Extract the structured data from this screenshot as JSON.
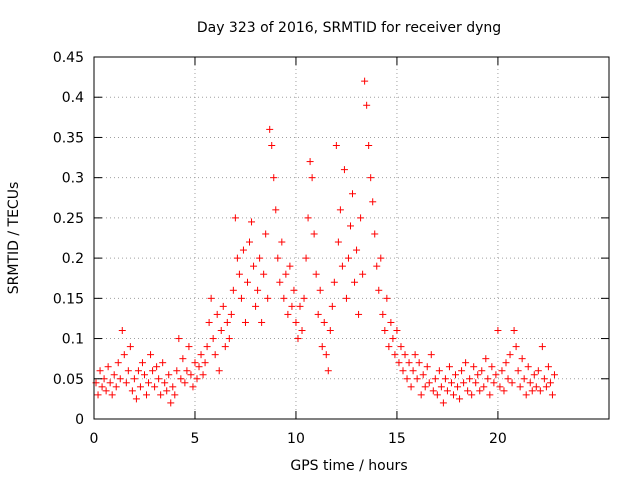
{
  "chart_data": {
    "type": "scatter",
    "title": "Day 323 of 2016, SRMTID for receiver dyng",
    "xlabel": "GPS time / hours",
    "ylabel": "SRMTID / TECUs",
    "xlim": [
      0,
      25.5
    ],
    "ylim": [
      0,
      0.45
    ],
    "xticks": [
      0,
      5,
      10,
      15,
      20
    ],
    "xtick_labels": [
      "0",
      "5",
      "10",
      "15",
      "20"
    ],
    "yticks": [
      0,
      0.05,
      0.1,
      0.15,
      0.2,
      0.25,
      0.3,
      0.35,
      0.4,
      0.45
    ],
    "ytick_labels": [
      "0",
      "0.05",
      "0.1",
      "0.15",
      "0.2",
      "0.25",
      "0.3",
      "0.35",
      "0.4",
      "0.45"
    ],
    "grid": true,
    "marker": "+",
    "color": "#ff0000",
    "series": [
      {
        "name": "SRMTID",
        "points": [
          [
            0.1,
            0.045
          ],
          [
            0.2,
            0.03
          ],
          [
            0.3,
            0.06
          ],
          [
            0.4,
            0.04
          ],
          [
            0.5,
            0.05
          ],
          [
            0.6,
            0.035
          ],
          [
            0.7,
            0.065
          ],
          [
            0.8,
            0.045
          ],
          [
            0.9,
            0.03
          ],
          [
            1.0,
            0.055
          ],
          [
            1.1,
            0.04
          ],
          [
            1.2,
            0.07
          ],
          [
            1.3,
            0.05
          ],
          [
            1.4,
            0.11
          ],
          [
            1.5,
            0.08
          ],
          [
            1.6,
            0.045
          ],
          [
            1.7,
            0.06
          ],
          [
            1.8,
            0.09
          ],
          [
            1.9,
            0.035
          ],
          [
            2.0,
            0.05
          ],
          [
            2.1,
            0.025
          ],
          [
            2.2,
            0.06
          ],
          [
            2.3,
            0.04
          ],
          [
            2.4,
            0.07
          ],
          [
            2.5,
            0.055
          ],
          [
            2.6,
            0.03
          ],
          [
            2.7,
            0.045
          ],
          [
            2.8,
            0.08
          ],
          [
            2.9,
            0.06
          ],
          [
            3.0,
            0.04
          ],
          [
            3.1,
            0.065
          ],
          [
            3.2,
            0.05
          ],
          [
            3.3,
            0.03
          ],
          [
            3.4,
            0.07
          ],
          [
            3.5,
            0.045
          ],
          [
            3.6,
            0.035
          ],
          [
            3.7,
            0.055
          ],
          [
            3.8,
            0.02
          ],
          [
            3.9,
            0.04
          ],
          [
            4.0,
            0.03
          ],
          [
            4.1,
            0.06
          ],
          [
            4.2,
            0.1
          ],
          [
            4.3,
            0.05
          ],
          [
            4.4,
            0.075
          ],
          [
            4.5,
            0.045
          ],
          [
            4.6,
            0.06
          ],
          [
            4.7,
            0.09
          ],
          [
            4.8,
            0.055
          ],
          [
            4.9,
            0.04
          ],
          [
            5.0,
            0.07
          ],
          [
            5.1,
            0.05
          ],
          [
            5.2,
            0.065
          ],
          [
            5.3,
            0.08
          ],
          [
            5.4,
            0.055
          ],
          [
            5.5,
            0.07
          ],
          [
            5.6,
            0.09
          ],
          [
            5.7,
            0.12
          ],
          [
            5.8,
            0.15
          ],
          [
            5.9,
            0.1
          ],
          [
            6.0,
            0.08
          ],
          [
            6.1,
            0.13
          ],
          [
            6.2,
            0.06
          ],
          [
            6.3,
            0.11
          ],
          [
            6.4,
            0.14
          ],
          [
            6.5,
            0.09
          ],
          [
            6.6,
            0.12
          ],
          [
            6.7,
            0.1
          ],
          [
            6.8,
            0.13
          ],
          [
            6.9,
            0.16
          ],
          [
            7.0,
            0.25
          ],
          [
            7.1,
            0.2
          ],
          [
            7.2,
            0.18
          ],
          [
            7.3,
            0.15
          ],
          [
            7.4,
            0.21
          ],
          [
            7.5,
            0.12
          ],
          [
            7.6,
            0.17
          ],
          [
            7.7,
            0.22
          ],
          [
            7.8,
            0.245
          ],
          [
            7.9,
            0.19
          ],
          [
            8.0,
            0.14
          ],
          [
            8.1,
            0.16
          ],
          [
            8.2,
            0.2
          ],
          [
            8.3,
            0.12
          ],
          [
            8.4,
            0.18
          ],
          [
            8.5,
            0.23
          ],
          [
            8.6,
            0.15
          ],
          [
            8.7,
            0.36
          ],
          [
            8.8,
            0.34
          ],
          [
            8.9,
            0.3
          ],
          [
            9.0,
            0.26
          ],
          [
            9.1,
            0.2
          ],
          [
            9.2,
            0.17
          ],
          [
            9.3,
            0.22
          ],
          [
            9.4,
            0.15
          ],
          [
            9.5,
            0.18
          ],
          [
            9.6,
            0.13
          ],
          [
            9.7,
            0.19
          ],
          [
            9.8,
            0.14
          ],
          [
            9.9,
            0.16
          ],
          [
            10.0,
            0.12
          ],
          [
            10.1,
            0.1
          ],
          [
            10.2,
            0.14
          ],
          [
            10.3,
            0.11
          ],
          [
            10.4,
            0.15
          ],
          [
            10.5,
            0.2
          ],
          [
            10.6,
            0.25
          ],
          [
            10.7,
            0.32
          ],
          [
            10.8,
            0.3
          ],
          [
            10.9,
            0.23
          ],
          [
            11.0,
            0.18
          ],
          [
            11.1,
            0.13
          ],
          [
            11.2,
            0.16
          ],
          [
            11.3,
            0.09
          ],
          [
            11.4,
            0.12
          ],
          [
            11.5,
            0.08
          ],
          [
            11.6,
            0.06
          ],
          [
            11.7,
            0.11
          ],
          [
            11.8,
            0.14
          ],
          [
            11.9,
            0.17
          ],
          [
            12.0,
            0.34
          ],
          [
            12.1,
            0.22
          ],
          [
            12.2,
            0.26
          ],
          [
            12.3,
            0.19
          ],
          [
            12.4,
            0.31
          ],
          [
            12.5,
            0.15
          ],
          [
            12.6,
            0.2
          ],
          [
            12.7,
            0.24
          ],
          [
            12.8,
            0.28
          ],
          [
            12.9,
            0.17
          ],
          [
            13.0,
            0.21
          ],
          [
            13.1,
            0.13
          ],
          [
            13.2,
            0.25
          ],
          [
            13.3,
            0.18
          ],
          [
            13.4,
            0.42
          ],
          [
            13.5,
            0.39
          ],
          [
            13.6,
            0.34
          ],
          [
            13.7,
            0.3
          ],
          [
            13.8,
            0.27
          ],
          [
            13.9,
            0.23
          ],
          [
            14.0,
            0.19
          ],
          [
            14.1,
            0.16
          ],
          [
            14.2,
            0.2
          ],
          [
            14.3,
            0.13
          ],
          [
            14.4,
            0.11
          ],
          [
            14.5,
            0.15
          ],
          [
            14.6,
            0.09
          ],
          [
            14.7,
            0.12
          ],
          [
            14.8,
            0.1
          ],
          [
            14.9,
            0.08
          ],
          [
            15.0,
            0.11
          ],
          [
            15.1,
            0.07
          ],
          [
            15.2,
            0.09
          ],
          [
            15.3,
            0.06
          ],
          [
            15.4,
            0.08
          ],
          [
            15.5,
            0.05
          ],
          [
            15.6,
            0.07
          ],
          [
            15.7,
            0.04
          ],
          [
            15.8,
            0.06
          ],
          [
            15.9,
            0.08
          ],
          [
            16.0,
            0.05
          ],
          [
            16.1,
            0.07
          ],
          [
            16.2,
            0.03
          ],
          [
            16.3,
            0.055
          ],
          [
            16.4,
            0.04
          ],
          [
            16.5,
            0.065
          ],
          [
            16.6,
            0.045
          ],
          [
            16.7,
            0.08
          ],
          [
            16.8,
            0.035
          ],
          [
            16.9,
            0.05
          ],
          [
            17.0,
            0.03
          ],
          [
            17.1,
            0.06
          ],
          [
            17.2,
            0.04
          ],
          [
            17.3,
            0.02
          ],
          [
            17.4,
            0.05
          ],
          [
            17.5,
            0.035
          ],
          [
            17.6,
            0.065
          ],
          [
            17.7,
            0.045
          ],
          [
            17.8,
            0.03
          ],
          [
            17.9,
            0.055
          ],
          [
            18.0,
            0.04
          ],
          [
            18.1,
            0.025
          ],
          [
            18.2,
            0.06
          ],
          [
            18.3,
            0.045
          ],
          [
            18.4,
            0.07
          ],
          [
            18.5,
            0.035
          ],
          [
            18.6,
            0.05
          ],
          [
            18.7,
            0.03
          ],
          [
            18.8,
            0.065
          ],
          [
            18.9,
            0.045
          ],
          [
            19.0,
            0.055
          ],
          [
            19.1,
            0.035
          ],
          [
            19.2,
            0.06
          ],
          [
            19.3,
            0.04
          ],
          [
            19.4,
            0.075
          ],
          [
            19.5,
            0.05
          ],
          [
            19.6,
            0.03
          ],
          [
            19.7,
            0.065
          ],
          [
            19.8,
            0.045
          ],
          [
            19.9,
            0.055
          ],
          [
            20.0,
            0.11
          ],
          [
            20.1,
            0.04
          ],
          [
            20.2,
            0.06
          ],
          [
            20.3,
            0.035
          ],
          [
            20.4,
            0.07
          ],
          [
            20.5,
            0.05
          ],
          [
            20.6,
            0.08
          ],
          [
            20.7,
            0.045
          ],
          [
            20.8,
            0.11
          ],
          [
            20.9,
            0.09
          ],
          [
            21.0,
            0.06
          ],
          [
            21.1,
            0.04
          ],
          [
            21.2,
            0.075
          ],
          [
            21.3,
            0.05
          ],
          [
            21.4,
            0.03
          ],
          [
            21.5,
            0.065
          ],
          [
            21.6,
            0.045
          ],
          [
            21.7,
            0.035
          ],
          [
            21.8,
            0.055
          ],
          [
            21.9,
            0.04
          ],
          [
            22.0,
            0.06
          ],
          [
            22.1,
            0.035
          ],
          [
            22.2,
            0.09
          ],
          [
            22.3,
            0.05
          ],
          [
            22.4,
            0.04
          ],
          [
            22.5,
            0.065
          ],
          [
            22.6,
            0.045
          ],
          [
            22.7,
            0.03
          ],
          [
            22.8,
            0.055
          ]
        ]
      }
    ]
  }
}
